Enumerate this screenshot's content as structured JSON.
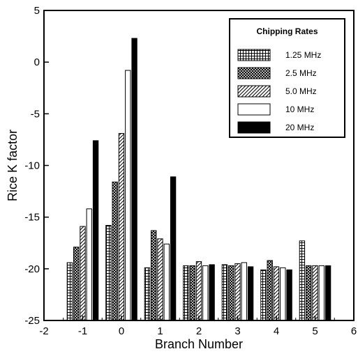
{
  "chart_data": {
    "type": "bar",
    "xlabel": "Branch Number",
    "ylabel": "Rice K factor",
    "xlim": [
      -2,
      6
    ],
    "ylim": [
      -25,
      5
    ],
    "xticks": [
      -2,
      -1,
      0,
      1,
      2,
      3,
      4,
      5,
      6
    ],
    "yticks": [
      -25,
      -20,
      -15,
      -10,
      -5,
      0,
      5
    ],
    "grid": false,
    "legend_title": "Chipping Rates",
    "legend_position": "top-right",
    "categories": [
      -1,
      0,
      1,
      2,
      3,
      4,
      5
    ],
    "series": [
      {
        "name": "1.25 MHz",
        "pattern": "grid",
        "values": [
          -19.4,
          -15.8,
          -19.9,
          -19.7,
          -19.6,
          -20.1,
          -17.3
        ]
      },
      {
        "name": "2.5 MHz",
        "pattern": "crosshatch",
        "values": [
          -17.9,
          -11.6,
          -16.3,
          -19.7,
          -19.7,
          -19.2,
          -19.7
        ]
      },
      {
        "name": "5.0 MHz",
        "pattern": "diagonal",
        "values": [
          -15.9,
          -6.9,
          -17.1,
          -19.3,
          -19.5,
          -19.8,
          -19.7
        ]
      },
      {
        "name": "10 MHz",
        "pattern": "white",
        "values": [
          -14.2,
          -0.8,
          -17.6,
          -19.7,
          -19.4,
          -19.9,
          -19.7
        ]
      },
      {
        "name": "20 MHz",
        "pattern": "black",
        "values": [
          -7.6,
          2.3,
          -11.1,
          -19.6,
          -19.8,
          -20.1,
          -19.7
        ]
      }
    ]
  }
}
